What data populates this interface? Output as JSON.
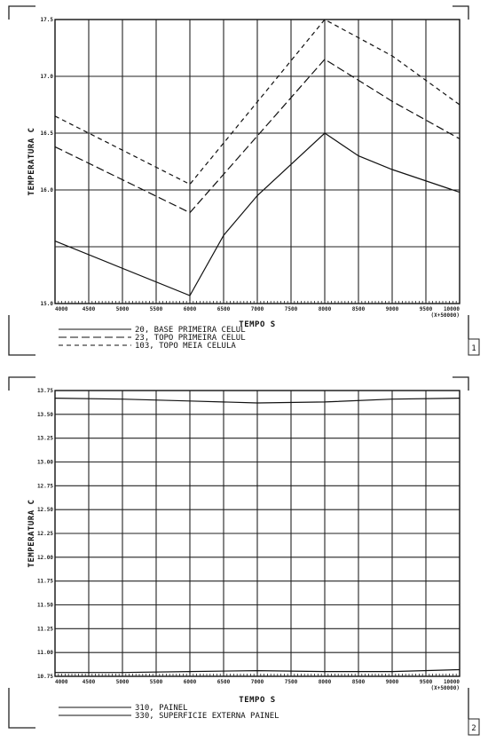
{
  "chart_data": [
    {
      "type": "line",
      "page_number": "1",
      "xlabel": "TEMPO   S",
      "ylabel": "TEMPERATURA   C",
      "x_multiplier": "(X+50000)",
      "xlim": [
        4000,
        10000
      ],
      "ylim": [
        15.0,
        17.5
      ],
      "xticks": [
        "4000",
        "4500",
        "5000",
        "5500",
        "6000",
        "6500",
        "7000",
        "7500",
        "8000",
        "8500",
        "9000",
        "9500",
        "10000"
      ],
      "yticks": [
        "15.0",
        "15.5",
        "16.0",
        "16.5",
        "17.0",
        "17.5"
      ],
      "yticks_drawn": [
        "15.0",
        "16.0",
        "16.5",
        "17.0",
        "17.5"
      ],
      "grid": true,
      "series": [
        {
          "name": "20,  BASE PRIMEIRA CELUL",
          "dash": "solid",
          "x": [
            4000,
            6000,
            6500,
            7000,
            8000,
            8500,
            9000,
            10000
          ],
          "y": [
            15.55,
            15.07,
            15.6,
            15.95,
            16.5,
            16.3,
            16.18,
            15.98
          ]
        },
        {
          "name": "23,  TOPO PRIMEIRA CELUL",
          "dash": "long",
          "x": [
            4000,
            6000,
            8000,
            9000,
            10000
          ],
          "y": [
            16.38,
            15.8,
            17.15,
            16.78,
            16.45
          ]
        },
        {
          "name": "103, TOPO MEIA CELULA",
          "dash": "short",
          "x": [
            4000,
            6000,
            8000,
            9000,
            10000
          ],
          "y": [
            16.65,
            16.05,
            17.5,
            17.18,
            16.75
          ]
        }
      ]
    },
    {
      "type": "line",
      "page_number": "2",
      "xlabel": "TEMPO   S",
      "ylabel": "TEMPERATURA   C",
      "x_multiplier": "(X+50000)",
      "xlim": [
        4000,
        10000
      ],
      "ylim": [
        10.75,
        13.75
      ],
      "xticks": [
        "4000",
        "4500",
        "5000",
        "5500",
        "6000",
        "6500",
        "7000",
        "7500",
        "8000",
        "8500",
        "9000",
        "9500",
        "10000"
      ],
      "yticks": [
        "10.75",
        "11.00",
        "11.25",
        "11.50",
        "11.75",
        "12.00",
        "12.25",
        "12.50",
        "12.75",
        "13.00",
        "13.25",
        "13.50",
        "13.75"
      ],
      "grid": true,
      "series": [
        {
          "name": "310,  PAINEL",
          "dash": "solid",
          "x": [
            4000,
            5000,
            6000,
            7000,
            8000,
            9000,
            10000
          ],
          "y": [
            13.67,
            13.66,
            13.64,
            13.62,
            13.63,
            13.66,
            13.67
          ]
        },
        {
          "name": "330,  SUPERFICIE EXTERNA PAINEL",
          "dash": "solid",
          "x": [
            4000,
            5000,
            6000,
            7000,
            8000,
            9000,
            10000
          ],
          "y": [
            10.79,
            10.79,
            10.8,
            10.81,
            10.8,
            10.8,
            10.82
          ]
        }
      ]
    }
  ]
}
